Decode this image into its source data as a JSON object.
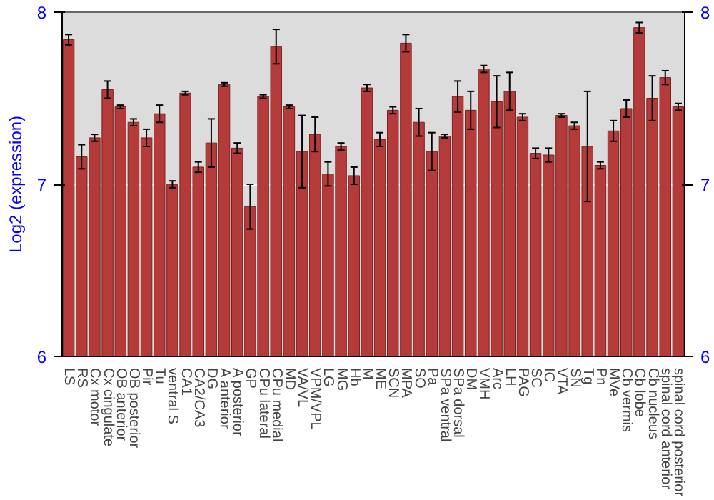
{
  "chart_data": {
    "type": "bar",
    "ylabel": "Log2 (expression)",
    "categories": [
      "LS",
      "RS",
      "Cx motor",
      "Cx cingulate",
      "OB anterior",
      "OB posterior",
      "Pir",
      "Tu",
      "ventral S",
      "CA1",
      "CA2/CA3",
      "DG",
      "A anterior",
      "A posterior",
      "GP",
      "CPu lateral",
      "CPu medial",
      "MD",
      "VA/VL",
      "VPM/VPL",
      "LG",
      "MG",
      "Hb",
      "M",
      "ME",
      "SCN",
      "MPA",
      "SO",
      "Pa",
      "SPa ventral",
      "SPa dorsal",
      "DM",
      "VMH",
      "Arc",
      "LH",
      "PAG",
      "SC",
      "IC",
      "VTA",
      "SN",
      "Tg",
      "Pn",
      "MVe",
      "Cb vermis",
      "Cb lobe",
      "Cb nucleus",
      "spinal cord anterior",
      "spinal cord posterior"
    ],
    "values": [
      7.84,
      7.16,
      7.27,
      7.55,
      7.45,
      7.36,
      7.27,
      7.41,
      7.0,
      7.53,
      7.1,
      7.24,
      7.58,
      7.21,
      6.87,
      7.51,
      7.8,
      7.45,
      7.19,
      7.29,
      7.06,
      7.22,
      7.05,
      7.56,
      7.26,
      7.43,
      7.82,
      7.36,
      7.19,
      7.28,
      7.51,
      7.43,
      7.67,
      7.48,
      7.54,
      7.39,
      7.18,
      7.17,
      7.4,
      7.34,
      7.22,
      7.11,
      7.31,
      7.44,
      7.91,
      7.5,
      7.62,
      7.45
    ],
    "errors": [
      0.03,
      0.07,
      0.02,
      0.05,
      0.01,
      0.02,
      0.05,
      0.05,
      0.02,
      0.01,
      0.03,
      0.14,
      0.01,
      0.03,
      0.13,
      0.01,
      0.1,
      0.01,
      0.21,
      0.1,
      0.07,
      0.02,
      0.05,
      0.02,
      0.04,
      0.02,
      0.05,
      0.08,
      0.11,
      0.01,
      0.09,
      0.11,
      0.02,
      0.15,
      0.11,
      0.02,
      0.03,
      0.04,
      0.01,
      0.02,
      0.32,
      0.02,
      0.06,
      0.05,
      0.03,
      0.13,
      0.04,
      0.02
    ],
    "color": "#b53b3b",
    "ylim": [
      6,
      8
    ],
    "yticks": [
      6,
      7,
      8
    ],
    "y2lim": [
      6,
      8
    ],
    "y2ticks": [
      6,
      7,
      8
    ],
    "grid": "y"
  }
}
